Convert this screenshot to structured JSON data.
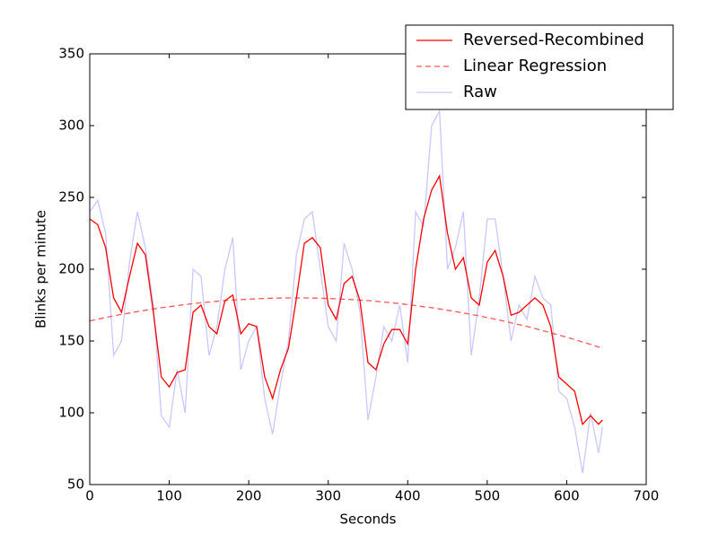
{
  "chart_data": {
    "type": "line",
    "xlabel": "Seconds",
    "ylabel": "Blinks per minute",
    "x": [
      0,
      10,
      20,
      30,
      40,
      50,
      60,
      70,
      80,
      90,
      100,
      110,
      120,
      130,
      140,
      150,
      160,
      170,
      180,
      190,
      200,
      210,
      220,
      230,
      240,
      250,
      260,
      270,
      280,
      290,
      300,
      310,
      320,
      330,
      340,
      350,
      360,
      370,
      380,
      390,
      400,
      410,
      420,
      430,
      440,
      450,
      460,
      470,
      480,
      490,
      500,
      510,
      520,
      530,
      540,
      550,
      560,
      570,
      580,
      590,
      600,
      610,
      620,
      630,
      640,
      645
    ],
    "series": [
      {
        "name": "Reversed-Recombined",
        "color": "#ff0000",
        "dash": false,
        "values": [
          235,
          231,
          215,
          180,
          170,
          195,
          218,
          210,
          170,
          125,
          118,
          128,
          130,
          170,
          175,
          160,
          155,
          178,
          182,
          155,
          162,
          160,
          125,
          110,
          130,
          145,
          180,
          218,
          222,
          215,
          175,
          165,
          190,
          195,
          178,
          135,
          130,
          148,
          158,
          158,
          148,
          200,
          235,
          255,
          265,
          225,
          200,
          208,
          180,
          175,
          205,
          213,
          195,
          168,
          170,
          175,
          180,
          175,
          160,
          125,
          120,
          115,
          92,
          98,
          92,
          95
        ]
      },
      {
        "name": "Linear Regression",
        "color": "#ff5555",
        "dash": true,
        "values": [
          164.0,
          165.2,
          166.3,
          167.5,
          168.5,
          169.5,
          170.5,
          171.4,
          172.3,
          173.2,
          173.9,
          174.7,
          175.4,
          176.0,
          176.6,
          177.1,
          177.6,
          178.1,
          178.5,
          178.8,
          179.1,
          179.4,
          179.6,
          179.8,
          179.9,
          180,
          180,
          180,
          179.9,
          179.8,
          179.6,
          179.4,
          179.1,
          178.8,
          178.5,
          178.1,
          177.6,
          177.1,
          176.6,
          176.0,
          175.4,
          174.7,
          173.9,
          173.2,
          172.3,
          171.4,
          170.5,
          169.5,
          168.5,
          167.5,
          166.3,
          165.2,
          164.0,
          162.7,
          161.4,
          160.1,
          158.7,
          157.2,
          155.7,
          154.2,
          152.6,
          151.0,
          149.3,
          147.6,
          145.8,
          144.9
        ]
      },
      {
        "name": "Raw",
        "color": "#c8c8ff",
        "dash": false,
        "values": [
          240,
          248,
          225,
          140,
          150,
          205,
          240,
          215,
          175,
          98,
          90,
          130,
          100,
          200,
          195,
          140,
          160,
          200,
          222,
          130,
          150,
          160,
          110,
          85,
          120,
          150,
          210,
          235,
          240,
          200,
          160,
          150,
          218,
          200,
          170,
          95,
          125,
          160,
          150,
          175,
          135,
          240,
          230,
          300,
          310,
          200,
          215,
          240,
          140,
          180,
          235,
          235,
          195,
          150,
          175,
          165,
          195,
          180,
          175,
          115,
          110,
          90,
          58,
          100,
          72,
          90
        ]
      }
    ],
    "xlim": [
      0,
      700
    ],
    "xticks": [
      0,
      100,
      200,
      300,
      400,
      500,
      600,
      700
    ],
    "ylim": [
      50,
      350
    ],
    "yticks": [
      50,
      100,
      150,
      200,
      250,
      300,
      350
    ],
    "legend": "upper right"
  }
}
